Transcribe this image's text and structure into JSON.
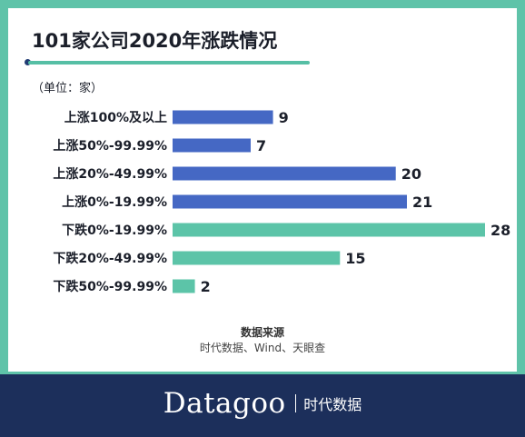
{
  "chart_data": {
    "type": "bar",
    "orientation": "horizontal",
    "title": "101家公司2020年涨跌情况",
    "unit_note": "（单位：家）",
    "categories": [
      "上涨100%及以上",
      "上涨50%-99.99%",
      "上涨20%-49.99%",
      "上涨0%-19.99%",
      "下跌0%-19.99%",
      "下跌20%-49.99%",
      "下跌50%-99.99%"
    ],
    "values": [
      9,
      7,
      20,
      21,
      28,
      15,
      2
    ],
    "colors": [
      "#4568c4",
      "#4568c4",
      "#4568c4",
      "#4568c4",
      "#5cc4a8",
      "#5cc4a8",
      "#5cc4a8"
    ],
    "xlim": [
      0,
      28
    ],
    "grid": false
  },
  "source": {
    "title": "数据来源",
    "text": "时代数据、Wind、天眼查"
  },
  "footer": {
    "brand": "Datagoo",
    "sub": "时代数据"
  }
}
